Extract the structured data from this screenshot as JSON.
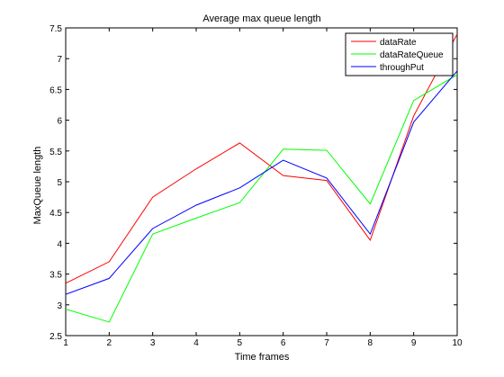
{
  "chart_data": {
    "type": "line",
    "title": "Average max queue length",
    "xlabel": "Time frames",
    "ylabel": "MaxQueue length",
    "xlim": [
      1,
      10
    ],
    "ylim": [
      2.5,
      7.5
    ],
    "x": [
      1,
      2,
      3,
      4,
      5,
      6,
      7,
      8,
      9,
      10
    ],
    "xticks": [
      "1",
      "2",
      "3",
      "4",
      "5",
      "6",
      "7",
      "8",
      "9",
      "10"
    ],
    "yticks": [
      "2.5",
      "3",
      "3.5",
      "4",
      "4.5",
      "5",
      "5.5",
      "6",
      "6.5",
      "7",
      "7.5"
    ],
    "grid": false,
    "legend_position": "top-right",
    "series": [
      {
        "name": "dataRate",
        "color": "#ff0000",
        "values": [
          3.35,
          3.7,
          4.75,
          5.21,
          5.63,
          5.1,
          5.02,
          4.05,
          6.07,
          7.4
        ]
      },
      {
        "name": "dataRateQueue",
        "color": "#00ff00",
        "values": [
          2.93,
          2.72,
          4.15,
          4.41,
          4.66,
          5.53,
          5.51,
          4.64,
          6.32,
          6.74
        ]
      },
      {
        "name": "throughPut",
        "color": "#0000ff",
        "values": [
          3.17,
          3.43,
          4.24,
          4.62,
          4.9,
          5.35,
          5.06,
          4.15,
          5.97,
          6.8
        ]
      }
    ]
  }
}
